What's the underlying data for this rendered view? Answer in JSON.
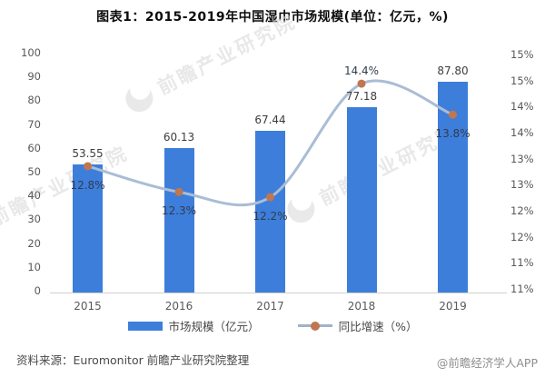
{
  "title": "图表1：2015-2019年中国湿巾市场规模(单位：亿元，%)",
  "chart_data": {
    "type": "bar",
    "categories": [
      "2015",
      "2016",
      "2017",
      "2018",
      "2019"
    ],
    "series": [
      {
        "name": "市场规模（亿元）",
        "type": "bar",
        "values": [
          53.55,
          60.13,
          67.44,
          77.18,
          87.8
        ],
        "labels": [
          "53.55",
          "60.13",
          "67.44",
          "77.18",
          "87.80"
        ],
        "color": "#3d7edb",
        "axis": "left"
      },
      {
        "name": "同比增速（%）",
        "type": "line",
        "values": [
          12.8,
          12.3,
          12.2,
          14.4,
          13.8
        ],
        "labels": [
          "12.8%",
          "12.3%",
          "12.2%",
          "14.4%",
          "13.8%"
        ],
        "label_side": [
          "below",
          "below",
          "below",
          "above",
          "below"
        ],
        "color": "#a9bdd4",
        "marker_color": "#c0764f",
        "axis": "right"
      }
    ],
    "left_axis": {
      "ticks": [
        "100",
        "90",
        "80",
        "70",
        "60",
        "50",
        "40",
        "30",
        "20",
        "10",
        "0"
      ],
      "min": 0,
      "max": 100
    },
    "right_axis": {
      "ticks": [
        "15%",
        "15%",
        "14%",
        "14%",
        "13%",
        "13%",
        "12%",
        "12%",
        "11%",
        "11%"
      ]
    },
    "legend": [
      "市场规模（亿元）",
      "同比增速（%）"
    ],
    "legend_position": "bottom",
    "grid": false
  },
  "watermark": {
    "text": "前瞻产业研究院"
  },
  "footer": {
    "source": "资料来源：Euromonitor 前瞻产业研究院整理",
    "credit": "@前瞻经济学人APP"
  },
  "colors": {
    "bar": "#3d7edb",
    "line": "#a9bdd4",
    "marker": "#c0764f",
    "axis_text": "#595959",
    "axis_line": "#cfcfcf"
  }
}
